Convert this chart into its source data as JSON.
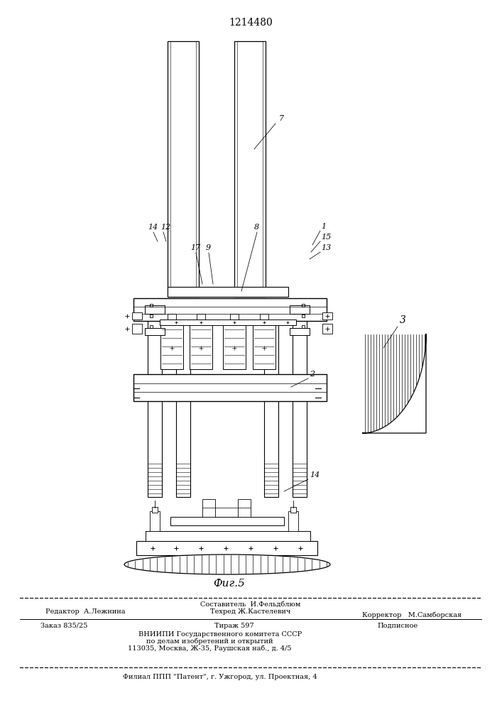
{
  "patent_number": "1214480",
  "fig_label": "Фиг.5",
  "bg_color": "#ffffff",
  "line_color": "#000000",
  "footer": {
    "line1_left": "Редактор  А.Лежнина",
    "line1_center_top": "Составитель  И.Фельдблюм",
    "line1_center_bot": "Техред Ж.Кастелевич",
    "line1_right": "Корректор   М.Самборская",
    "line3_left": "Заказ 835/25",
    "line3_center": "Тираж 597",
    "line3_right": "Подписное",
    "line4": "ВНИИПИ Государственного комитета СССР",
    "line5": "по делам изобретений и открытий",
    "line6": "113035, Москва, Ж-35, Раушская наб., д. 4/5",
    "line7": "Филиал ППП \"Патент\", г. Ужгород, ул. Проектная, 4"
  }
}
